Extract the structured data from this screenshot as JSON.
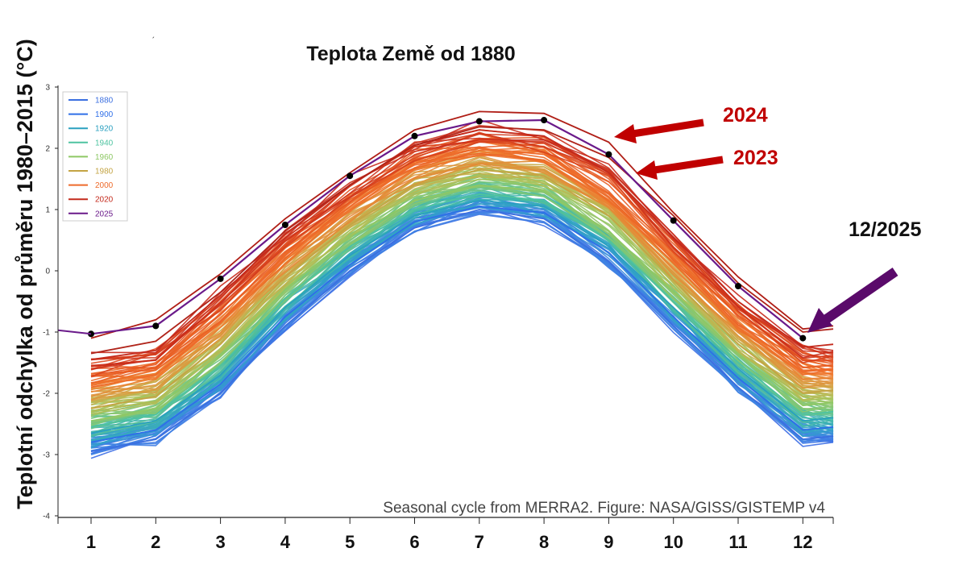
{
  "chart_data": {
    "type": "line",
    "title": "Teplota Země od 1880",
    "ylabel": "Teplotní odchylka od průměru 1980–2015 (°C)",
    "xlabel": "",
    "source": "Seasonal cycle from MERRA2. Figure: NASA/GISS/GISTEMP v4",
    "x": [
      1,
      2,
      3,
      4,
      5,
      6,
      7,
      8,
      9,
      10,
      11,
      12
    ],
    "x_tick_labels": [
      "1",
      "2",
      "3",
      "4",
      "5",
      "6",
      "7",
      "8",
      "9",
      "10",
      "11",
      "12"
    ],
    "ylim": [
      -4,
      3
    ],
    "y_ticks": [
      3,
      2,
      1,
      0,
      -1,
      -2,
      -3,
      -4
    ],
    "grid": false,
    "legend_position": "top-left",
    "legend": [
      {
        "label": "1880",
        "color": "#3b6fe0"
      },
      {
        "label": "1900",
        "color": "#2f6fe8"
      },
      {
        "label": "1920",
        "color": "#2aa0c0"
      },
      {
        "label": "1940",
        "color": "#4ec3a0"
      },
      {
        "label": "1960",
        "color": "#8ec865"
      },
      {
        "label": "1980",
        "color": "#c4a444"
      },
      {
        "label": "2000",
        "color": "#ee6a2a"
      },
      {
        "label": "2020",
        "color": "#c42a1c"
      },
      {
        "label": "2025",
        "color": "#6a1a8a"
      }
    ],
    "series": [
      {
        "name": "1880",
        "values": [
          -2.95,
          -2.75,
          -2.0,
          -0.9,
          0.0,
          0.7,
          1.0,
          0.85,
          0.15,
          -0.9,
          -1.9,
          -2.75
        ]
      },
      {
        "name": "1900",
        "values": [
          -2.8,
          -2.6,
          -1.85,
          -0.75,
          0.1,
          0.8,
          1.05,
          0.95,
          0.3,
          -0.75,
          -1.75,
          -2.6
        ]
      },
      {
        "name": "1920",
        "values": [
          -2.65,
          -2.45,
          -1.7,
          -0.6,
          0.25,
          0.9,
          1.15,
          1.05,
          0.4,
          -0.6,
          -1.6,
          -2.45
        ]
      },
      {
        "name": "1940",
        "values": [
          -2.55,
          -2.35,
          -1.55,
          -0.45,
          0.4,
          1.0,
          1.25,
          1.15,
          0.5,
          -0.5,
          -1.5,
          -2.35
        ]
      },
      {
        "name": "1960",
        "values": [
          -2.45,
          -2.25,
          -1.4,
          -0.3,
          0.55,
          1.15,
          1.4,
          1.3,
          0.65,
          -0.35,
          -1.35,
          -2.2
        ]
      },
      {
        "name": "1980",
        "values": [
          -2.25,
          -2.05,
          -1.2,
          -0.1,
          0.75,
          1.4,
          1.65,
          1.55,
          0.9,
          -0.15,
          -1.2,
          -2.0
        ]
      },
      {
        "name": "2000",
        "values": [
          -1.9,
          -1.7,
          -0.85,
          0.25,
          1.05,
          1.75,
          2.0,
          1.9,
          1.25,
          0.2,
          -0.85,
          -1.65
        ]
      },
      {
        "name": "2020",
        "values": [
          -1.45,
          -1.3,
          -0.4,
          0.6,
          1.4,
          2.05,
          2.3,
          2.2,
          1.6,
          0.55,
          -0.5,
          -1.25
        ]
      },
      {
        "name": "2024",
        "values": [
          -1.1,
          -0.8,
          -0.05,
          0.85,
          1.6,
          2.3,
          2.6,
          2.57,
          2.1,
          0.95,
          -0.1,
          -0.95
        ]
      },
      {
        "name": "2023",
        "values": [
          -1.35,
          -1.15,
          -0.35,
          0.65,
          1.4,
          2.05,
          2.35,
          2.3,
          1.85,
          0.9,
          -0.2,
          -1.0
        ]
      },
      {
        "name": "2025",
        "values": [
          -1.03,
          -0.9,
          -0.13,
          0.75,
          1.55,
          2.2,
          2.44,
          2.46,
          1.9,
          0.82,
          -0.25,
          -1.1
        ]
      }
    ],
    "annotations": [
      {
        "text": "2024",
        "color": "#c00000"
      },
      {
        "text": "2023",
        "color": "#c00000"
      },
      {
        "text": "12/2025",
        "color": "#111111"
      }
    ]
  }
}
